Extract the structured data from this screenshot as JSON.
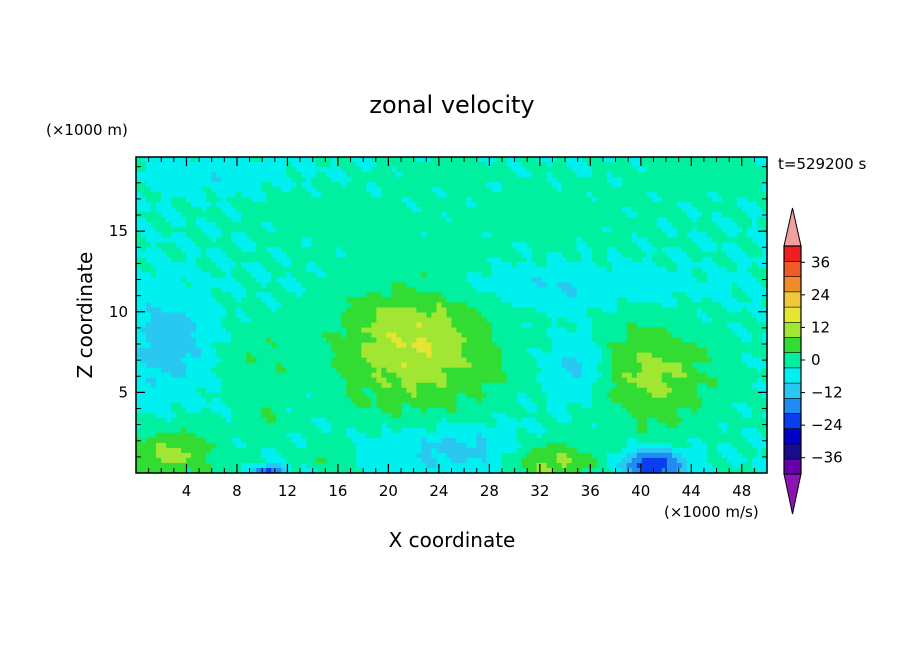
{
  "chart_data": {
    "type": "heatmap",
    "title": "zonal velocity",
    "xlabel": "X coordinate",
    "ylabel": "Z coordinate",
    "x_unit": "(×1000 m/s)",
    "y_unit": "(×1000 m)",
    "time_label": "t=529200 s",
    "xlim": [
      0,
      50
    ],
    "ylim": [
      0,
      19.6
    ],
    "x_ticks": [
      4,
      8,
      12,
      16,
      20,
      24,
      28,
      32,
      36,
      40,
      44,
      48
    ],
    "y_ticks": [
      5,
      10,
      15
    ],
    "colorbar": {
      "tick_labels": [
        "36",
        "24",
        "12",
        "0",
        "−12",
        "−24",
        "−36"
      ],
      "tick_values": [
        36,
        24,
        12,
        0,
        -12,
        -24,
        -36
      ],
      "levels": [
        -42,
        -36,
        -30,
        -24,
        -18,
        -12,
        -6,
        0,
        6,
        12,
        18,
        24,
        30,
        36,
        42
      ],
      "colors": [
        "#6600aa",
        "#1a0a8c",
        "#0000c8",
        "#0a3cf0",
        "#1e8cf0",
        "#28c8f0",
        "#00f0f0",
        "#00f0a0",
        "#32dc32",
        "#a0e632",
        "#e6e632",
        "#f0c83c",
        "#f08c28",
        "#f05a28",
        "#f01e1e"
      ],
      "under_color": "#8c14b4",
      "over_color": "#f0a0a0"
    },
    "features": [
      {
        "x": 22,
        "z": 8,
        "value": 18,
        "rx": 6,
        "rz": 4.2
      },
      {
        "x": 41,
        "z": 6,
        "value": 14,
        "rx": 4.5,
        "rz": 3.3
      },
      {
        "x": 3,
        "z": 1.2,
        "value": 14,
        "rx": 3.5,
        "rz": 1.5
      },
      {
        "x": 33,
        "z": 0.6,
        "value": 14,
        "rx": 3.5,
        "rz": 1.4
      },
      {
        "x": 10,
        "z": 7,
        "value": 5,
        "rx": 3,
        "rz": 2.4
      },
      {
        "x": 10,
        "z": 3.5,
        "value": 5,
        "rx": 1.6,
        "rz": 1.2
      },
      {
        "x": 15,
        "z": 1,
        "value": 5,
        "rx": 1.8,
        "rz": 1
      },
      {
        "x": 28,
        "z": 6.5,
        "value": 4,
        "rx": 1.5,
        "rz": 1.5
      },
      {
        "x": 2.5,
        "z": 8,
        "value": -10,
        "rx": 3,
        "rz": 3
      },
      {
        "x": 25,
        "z": 1.5,
        "value": -9,
        "rx": 6,
        "rz": 1.6
      },
      {
        "x": 41,
        "z": 0.5,
        "value": -24,
        "rx": 2.5,
        "rz": 1
      },
      {
        "x": 10.5,
        "z": 0.1,
        "value": -20,
        "rx": 1.2,
        "rz": 0.4
      },
      {
        "x": 35,
        "z": 6.5,
        "value": -9,
        "rx": 2.2,
        "rz": 2
      },
      {
        "x": 32,
        "z": 11.5,
        "value": -6,
        "rx": 12,
        "rz": 1.2
      },
      {
        "x": 7,
        "z": 18.5,
        "value": -5,
        "rx": 5,
        "rz": 1
      },
      {
        "x": 15,
        "z": 16,
        "value": 3,
        "rx": 6,
        "rz": 1.8
      },
      {
        "x": 33,
        "z": 16,
        "value": 3,
        "rx": 8,
        "rz": 2
      },
      {
        "x": 45,
        "z": 18.5,
        "value": 4,
        "rx": 5,
        "rz": 1.2
      },
      {
        "x": 24,
        "z": 18.5,
        "value": 3,
        "rx": 4,
        "rz": 0.8
      }
    ]
  }
}
